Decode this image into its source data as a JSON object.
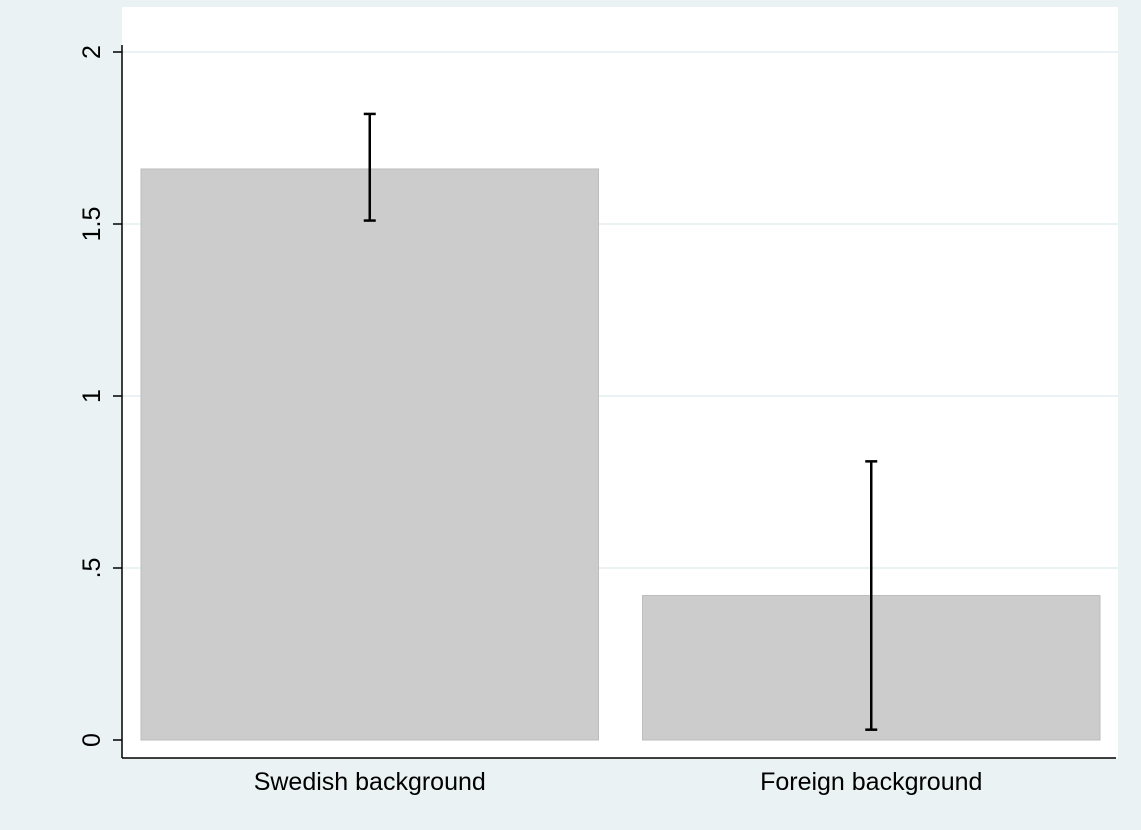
{
  "chart_data": {
    "type": "bar",
    "title": "",
    "xlabel": "",
    "ylabel": "",
    "categories": [
      "Swedish background",
      "Foreign background"
    ],
    "values": [
      1.66,
      0.42
    ],
    "error_bars": [
      {
        "low": 1.51,
        "high": 1.82
      },
      {
        "low": 0.03,
        "high": 0.81
      }
    ],
    "ylim": [
      0,
      2
    ],
    "yticks": [
      {
        "value": 0,
        "label": "0"
      },
      {
        "value": 0.5,
        "label": ".5"
      },
      {
        "value": 1,
        "label": "1"
      },
      {
        "value": 1.5,
        "label": "1.5"
      },
      {
        "value": 2,
        "label": "2"
      }
    ],
    "grid": true,
    "colors": {
      "background": "#eaf2f3",
      "plot_area": "#ffffff",
      "bar_fill": "#cccccc",
      "bar_stroke": "#bdbdbd",
      "grid": "#eaf2f3",
      "axis": "#000000",
      "error_bar": "#000000"
    }
  }
}
